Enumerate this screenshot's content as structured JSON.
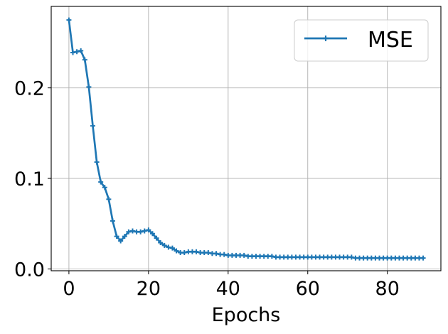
{
  "chart_data": {
    "type": "line",
    "title": "",
    "xlabel": "Epochs",
    "ylabel": "",
    "xlim": [
      -4.45,
      93.45
    ],
    "ylim": [
      -0.002,
      0.29
    ],
    "xticks": [
      0,
      20,
      40,
      60,
      80
    ],
    "xtick_labels": [
      "0",
      "20",
      "40",
      "60",
      "80"
    ],
    "yticks": [
      0.0,
      0.1,
      0.2
    ],
    "ytick_labels": [
      "0.0",
      "0.1",
      "0.2"
    ],
    "grid": true,
    "legend_position": "top-right",
    "color": "#1f77b4",
    "series": [
      {
        "name": "MSE",
        "marker": "plus",
        "x": [
          0,
          1,
          2,
          3,
          4,
          5,
          6,
          7,
          8,
          9,
          10,
          11,
          12,
          13,
          14,
          15,
          16,
          17,
          18,
          19,
          20,
          21,
          22,
          23,
          24,
          25,
          26,
          27,
          28,
          29,
          30,
          31,
          32,
          33,
          34,
          35,
          36,
          37,
          38,
          39,
          40,
          41,
          42,
          43,
          44,
          45,
          46,
          47,
          48,
          49,
          50,
          51,
          52,
          53,
          54,
          55,
          56,
          57,
          58,
          59,
          60,
          61,
          62,
          63,
          64,
          65,
          66,
          67,
          68,
          69,
          70,
          71,
          72,
          73,
          74,
          75,
          76,
          77,
          78,
          79,
          80,
          81,
          82,
          83,
          84,
          85,
          86,
          87,
          88,
          89
        ],
        "values": [
          0.275,
          0.239,
          0.24,
          0.241,
          0.231,
          0.201,
          0.158,
          0.118,
          0.096,
          0.09,
          0.077,
          0.053,
          0.036,
          0.031,
          0.036,
          0.041,
          0.042,
          0.041,
          0.041,
          0.042,
          0.043,
          0.039,
          0.034,
          0.029,
          0.026,
          0.024,
          0.023,
          0.02,
          0.018,
          0.018,
          0.019,
          0.019,
          0.019,
          0.018,
          0.018,
          0.018,
          0.017,
          0.017,
          0.016,
          0.016,
          0.015,
          0.015,
          0.015,
          0.015,
          0.015,
          0.014,
          0.014,
          0.014,
          0.014,
          0.014,
          0.014,
          0.014,
          0.013,
          0.013,
          0.013,
          0.013,
          0.013,
          0.013,
          0.013,
          0.013,
          0.013,
          0.013,
          0.013,
          0.013,
          0.013,
          0.013,
          0.013,
          0.013,
          0.013,
          0.013,
          0.013,
          0.013,
          0.012,
          0.012,
          0.012,
          0.012,
          0.012,
          0.012,
          0.012,
          0.012,
          0.012,
          0.012,
          0.012,
          0.012,
          0.012,
          0.012,
          0.012,
          0.012,
          0.012,
          0.012
        ]
      }
    ]
  }
}
